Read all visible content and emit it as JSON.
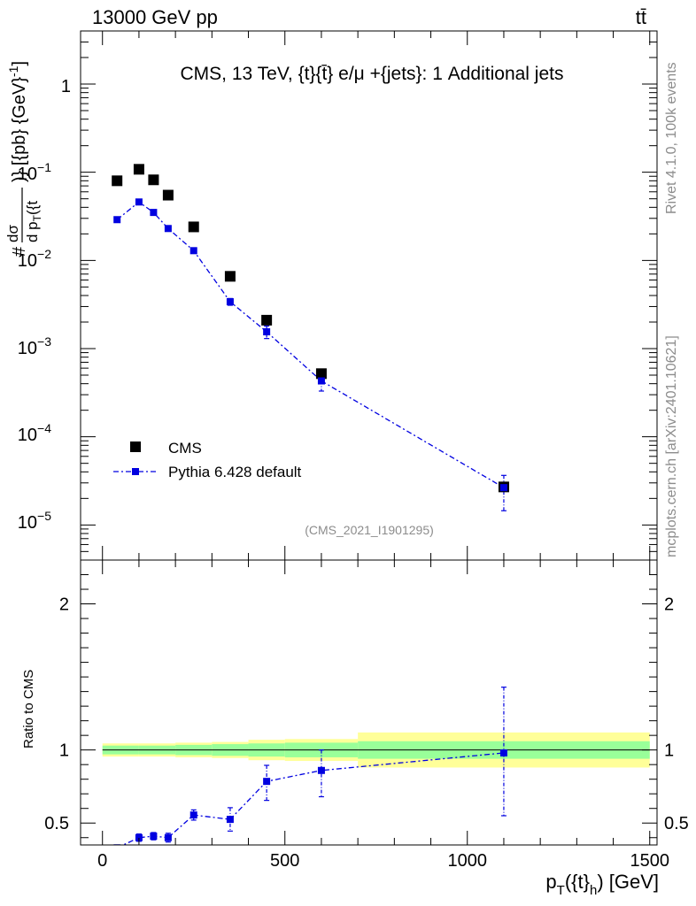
{
  "header": {
    "energy_label": "13000 GeV pp",
    "process_label": "tt̄"
  },
  "side_labels": {
    "rivet": "Rivet 4.1.0,  100k events",
    "mcplots": "mcplots.cern.ch [arXiv:2401.10621]"
  },
  "chart_data": [
    {
      "type": "scatter",
      "panel": "main",
      "title": "CMS, 13 TeV, {t}{t̄} e/μ +{jets}: 1 Additional jets",
      "xlabel": "p_T({t}_h) [GeV]",
      "ylabel": "# dσ / d p_T({t ...)} [{pb} {GeV}^-1]",
      "yscale": "log",
      "xlim": [
        -60,
        1520
      ],
      "ylim": [
        4e-06,
        4
      ],
      "y_tick_labels": [
        "1",
        "10^-1",
        "10^-2",
        "10^-3",
        "10^-4",
        "10^-5"
      ],
      "analysis_id": "(CMS_2021_I1901295)",
      "legend": {
        "position": "bottom-left",
        "entries": [
          "CMS",
          "Pythia 6.428 default"
        ]
      },
      "series": [
        {
          "name": "CMS",
          "style": "marker",
          "x": [
            40,
            100,
            140,
            180,
            250,
            350,
            450,
            600,
            1100
          ],
          "y": [
            0.08,
            0.108,
            0.082,
            0.055,
            0.024,
            0.0066,
            0.0021,
            0.00052,
            2.7e-05
          ]
        },
        {
          "name": "Pythia 6.428 default",
          "style": "dashdot-line-marker",
          "x": [
            40,
            100,
            140,
            180,
            250,
            350,
            450,
            600,
            1100
          ],
          "y": [
            0.029,
            0.046,
            0.035,
            0.023,
            0.0129,
            0.0034,
            0.00155,
            0.00043,
            2.65e-05
          ],
          "y_err_low": [
            0.001,
            0.0015,
            0.001,
            0.001,
            0.0006,
            0.0003,
            0.00025,
            0.0001,
            1.2e-05
          ],
          "y_err_high": [
            0.001,
            0.0015,
            0.001,
            0.001,
            0.0006,
            0.0003,
            0.00025,
            0.0001,
            1e-05
          ]
        }
      ]
    },
    {
      "type": "scatter",
      "panel": "ratio",
      "xlabel": "p_T({t}_h) [GeV]",
      "ylabel": "Ratio to CMS",
      "xlim": [
        -60,
        1520
      ],
      "ylim": [
        0.35,
        2.3
      ],
      "x_ticks": [
        0,
        500,
        1000,
        1500
      ],
      "y_ticks": [
        0.5,
        1,
        2
      ],
      "reference_line": 1,
      "bands": [
        {
          "x0": 0,
          "x1": 100,
          "yellow": [
            0.955,
            1.045
          ],
          "green": [
            0.97,
            1.03
          ]
        },
        {
          "x0": 100,
          "x1": 200,
          "yellow": [
            0.955,
            1.045
          ],
          "green": [
            0.97,
            1.03
          ]
        },
        {
          "x0": 200,
          "x1": 300,
          "yellow": [
            0.95,
            1.05
          ],
          "green": [
            0.965,
            1.035
          ]
        },
        {
          "x0": 300,
          "x1": 400,
          "yellow": [
            0.945,
            1.055
          ],
          "green": [
            0.96,
            1.04
          ]
        },
        {
          "x0": 400,
          "x1": 500,
          "yellow": [
            0.93,
            1.07
          ],
          "green": [
            0.955,
            1.045
          ]
        },
        {
          "x0": 500,
          "x1": 700,
          "yellow": [
            0.925,
            1.075
          ],
          "green": [
            0.95,
            1.05
          ]
        },
        {
          "x0": 700,
          "x1": 1500,
          "yellow": [
            0.88,
            1.12
          ],
          "green": [
            0.94,
            1.06
          ]
        }
      ],
      "series": [
        {
          "name": "Pythia 6.428 default / CMS",
          "x": [
            40,
            100,
            140,
            180,
            250,
            350,
            450,
            600,
            1100
          ],
          "y": [
            0.33,
            0.4,
            0.41,
            0.4,
            0.555,
            0.525,
            0.785,
            0.86,
            0.98
          ],
          "y_err_low": [
            0.02,
            0.025,
            0.025,
            0.03,
            0.035,
            0.08,
            0.13,
            0.18,
            0.43
          ],
          "y_err_high": [
            0.02,
            0.025,
            0.025,
            0.03,
            0.035,
            0.08,
            0.11,
            0.14,
            0.45
          ]
        }
      ]
    }
  ]
}
